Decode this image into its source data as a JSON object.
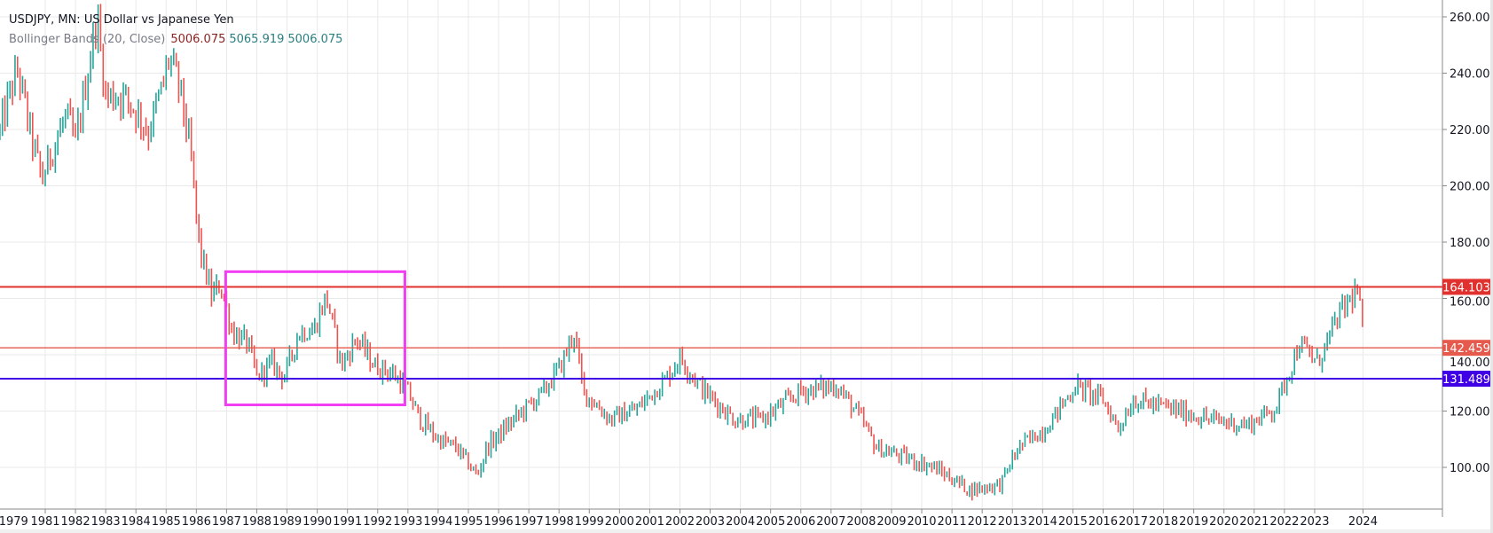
{
  "header": {
    "title": "USDJPY, MN: US Dollar vs Japanese Yen",
    "indicator": "Bollinger Bands (20, Close)",
    "indicator_values": [
      "5006.075",
      "5065.919",
      "5006.075"
    ]
  },
  "colors": {
    "up": "#26a69a",
    "down": "#ef5350",
    "grid": "#e9e9ea",
    "resistance": "#e0312e",
    "mid_level": "#e55a4c",
    "support": "#3f00e6",
    "box": "#f23ef2"
  },
  "chart_data": {
    "type": "ohlc",
    "timeframe": "monthly",
    "title": "USDJPY, MN: US Dollar vs Japanese Yen",
    "ylim": [
      83,
      266
    ],
    "xlim": [
      1979.45,
      2025.7
    ],
    "y_ticks": [
      {
        "value": 260,
        "label": "260.000"
      },
      {
        "value": 240,
        "label": "240.000"
      },
      {
        "value": 220,
        "label": "220.000"
      },
      {
        "value": 200,
        "label": "200.000"
      },
      {
        "value": 180,
        "label": "180.000"
      },
      {
        "value": 160,
        "label": "160.000"
      },
      {
        "value": 140,
        "label": "140.000"
      },
      {
        "value": 120,
        "label": "120.000"
      },
      {
        "value": 100,
        "label": "100.000"
      }
    ],
    "x_ticks": [
      {
        "value": 1979.95,
        "label": "1979",
        "grid": false
      },
      {
        "value": 1981,
        "label": "1981"
      },
      {
        "value": 1982,
        "label": "1982"
      },
      {
        "value": 1983,
        "label": "1983"
      },
      {
        "value": 1984,
        "label": "1984"
      },
      {
        "value": 1985,
        "label": "1985"
      },
      {
        "value": 1986,
        "label": "1986"
      },
      {
        "value": 1987,
        "label": "1987"
      },
      {
        "value": 1988,
        "label": "1988"
      },
      {
        "value": 1989,
        "label": "1989"
      },
      {
        "value": 1990,
        "label": "1990"
      },
      {
        "value": 1991,
        "label": "1991"
      },
      {
        "value": 1992,
        "label": "1992"
      },
      {
        "value": 1993,
        "label": "1993"
      },
      {
        "value": 1994,
        "label": "1994"
      },
      {
        "value": 1995,
        "label": "1995"
      },
      {
        "value": 1996,
        "label": "1996"
      },
      {
        "value": 1997,
        "label": "1997"
      },
      {
        "value": 1998,
        "label": "1998"
      },
      {
        "value": 1999,
        "label": "1999"
      },
      {
        "value": 2000,
        "label": "2000"
      },
      {
        "value": 2001,
        "label": "2001"
      },
      {
        "value": 2002,
        "label": "2002"
      },
      {
        "value": 2003,
        "label": "2003"
      },
      {
        "value": 2004,
        "label": "2004"
      },
      {
        "value": 2005,
        "label": "2005"
      },
      {
        "value": 2006,
        "label": "2006"
      },
      {
        "value": 2007,
        "label": "2007"
      },
      {
        "value": 2008,
        "label": "2008"
      },
      {
        "value": 2009,
        "label": "2009"
      },
      {
        "value": 2010,
        "label": "2010"
      },
      {
        "value": 2011,
        "label": "2011"
      },
      {
        "value": 2012,
        "label": "2012"
      },
      {
        "value": 2013,
        "label": "2013"
      },
      {
        "value": 2014,
        "label": "2014"
      },
      {
        "value": 2015,
        "label": "2015"
      },
      {
        "value": 2016,
        "label": "2016"
      },
      {
        "value": 2017,
        "label": "2017"
      },
      {
        "value": 2018,
        "label": "2018"
      },
      {
        "value": 2019,
        "label": "2019"
      },
      {
        "value": 2020,
        "label": "2020"
      },
      {
        "value": 2021,
        "label": "2021"
      },
      {
        "value": 2022,
        "label": "2022"
      },
      {
        "value": 2023,
        "label": "2023"
      },
      {
        "value": 2024.6,
        "label": "2024"
      }
    ],
    "close_path_approx": [
      [
        1979.5,
        219
      ],
      [
        1979.8,
        232
      ],
      [
        1980.1,
        241
      ],
      [
        1980.5,
        219
      ],
      [
        1980.9,
        202
      ],
      [
        1981.2,
        212
      ],
      [
        1981.7,
        225
      ],
      [
        1982.0,
        215
      ],
      [
        1982.5,
        246
      ],
      [
        1982.7,
        261
      ],
      [
        1983.0,
        232
      ],
      [
        1983.6,
        232
      ],
      [
        1984.1,
        225
      ],
      [
        1984.4,
        219
      ],
      [
        1984.9,
        236
      ],
      [
        1985.1,
        246
      ],
      [
        1985.5,
        232
      ],
      [
        1985.8,
        212
      ],
      [
        1986.1,
        178
      ],
      [
        1986.5,
        161
      ],
      [
        1986.8,
        165
      ],
      [
        1987.2,
        148
      ],
      [
        1987.7,
        144
      ],
      [
        1988.0,
        132
      ],
      [
        1988.5,
        137
      ],
      [
        1988.9,
        132
      ],
      [
        1989.4,
        148
      ],
      [
        1989.9,
        149
      ],
      [
        1990.3,
        161
      ],
      [
        1990.8,
        136
      ],
      [
        1991.3,
        146
      ],
      [
        1991.9,
        136
      ],
      [
        1992.4,
        134
      ],
      [
        1992.9,
        129
      ],
      [
        1993.4,
        117
      ],
      [
        1994.0,
        110
      ],
      [
        1994.6,
        107
      ],
      [
        1995.3,
        97
      ],
      [
        1995.6,
        107
      ],
      [
        1996.5,
        117
      ],
      [
        1997.5,
        127
      ],
      [
        1998.1,
        137
      ],
      [
        1998.5,
        148
      ],
      [
        1998.8,
        127
      ],
      [
        1999.7,
        117
      ],
      [
        2000.6,
        121
      ],
      [
        2001.5,
        131
      ],
      [
        2002.0,
        139
      ],
      [
        2002.8,
        127
      ],
      [
        2003.8,
        117
      ],
      [
        2004.7,
        117
      ],
      [
        2006.0,
        127
      ],
      [
        2007.2,
        129
      ],
      [
        2008.0,
        117
      ],
      [
        2008.5,
        107
      ],
      [
        2009.3,
        104
      ],
      [
        2010.4,
        100
      ],
      [
        2011.6,
        92
      ],
      [
        2012.6,
        94
      ],
      [
        2013.2,
        107
      ],
      [
        2014.1,
        114
      ],
      [
        2015.1,
        129
      ],
      [
        2016.0,
        124
      ],
      [
        2016.5,
        114
      ],
      [
        2017.0,
        124
      ],
      [
        2018.2,
        121
      ],
      [
        2019.5,
        117
      ],
      [
        2020.8,
        115
      ],
      [
        2021.7,
        121
      ],
      [
        2022.5,
        144
      ],
      [
        2023.1,
        137
      ],
      [
        2023.8,
        154
      ],
      [
        2024.4,
        163
      ],
      [
        2024.6,
        149
      ]
    ],
    "horizontal_levels": [
      {
        "name": "resistance",
        "value": 164.103,
        "label": "164.103"
      },
      {
        "name": "mid",
        "value": 142.459,
        "label": "142.459"
      },
      {
        "name": "support",
        "value": 131.489,
        "label": "131.489"
      }
    ],
    "highlight_box": {
      "x_from": 1986.97,
      "x_to": 1992.9,
      "y_from": 169.5,
      "y_to": 122.2
    },
    "grid": true
  }
}
